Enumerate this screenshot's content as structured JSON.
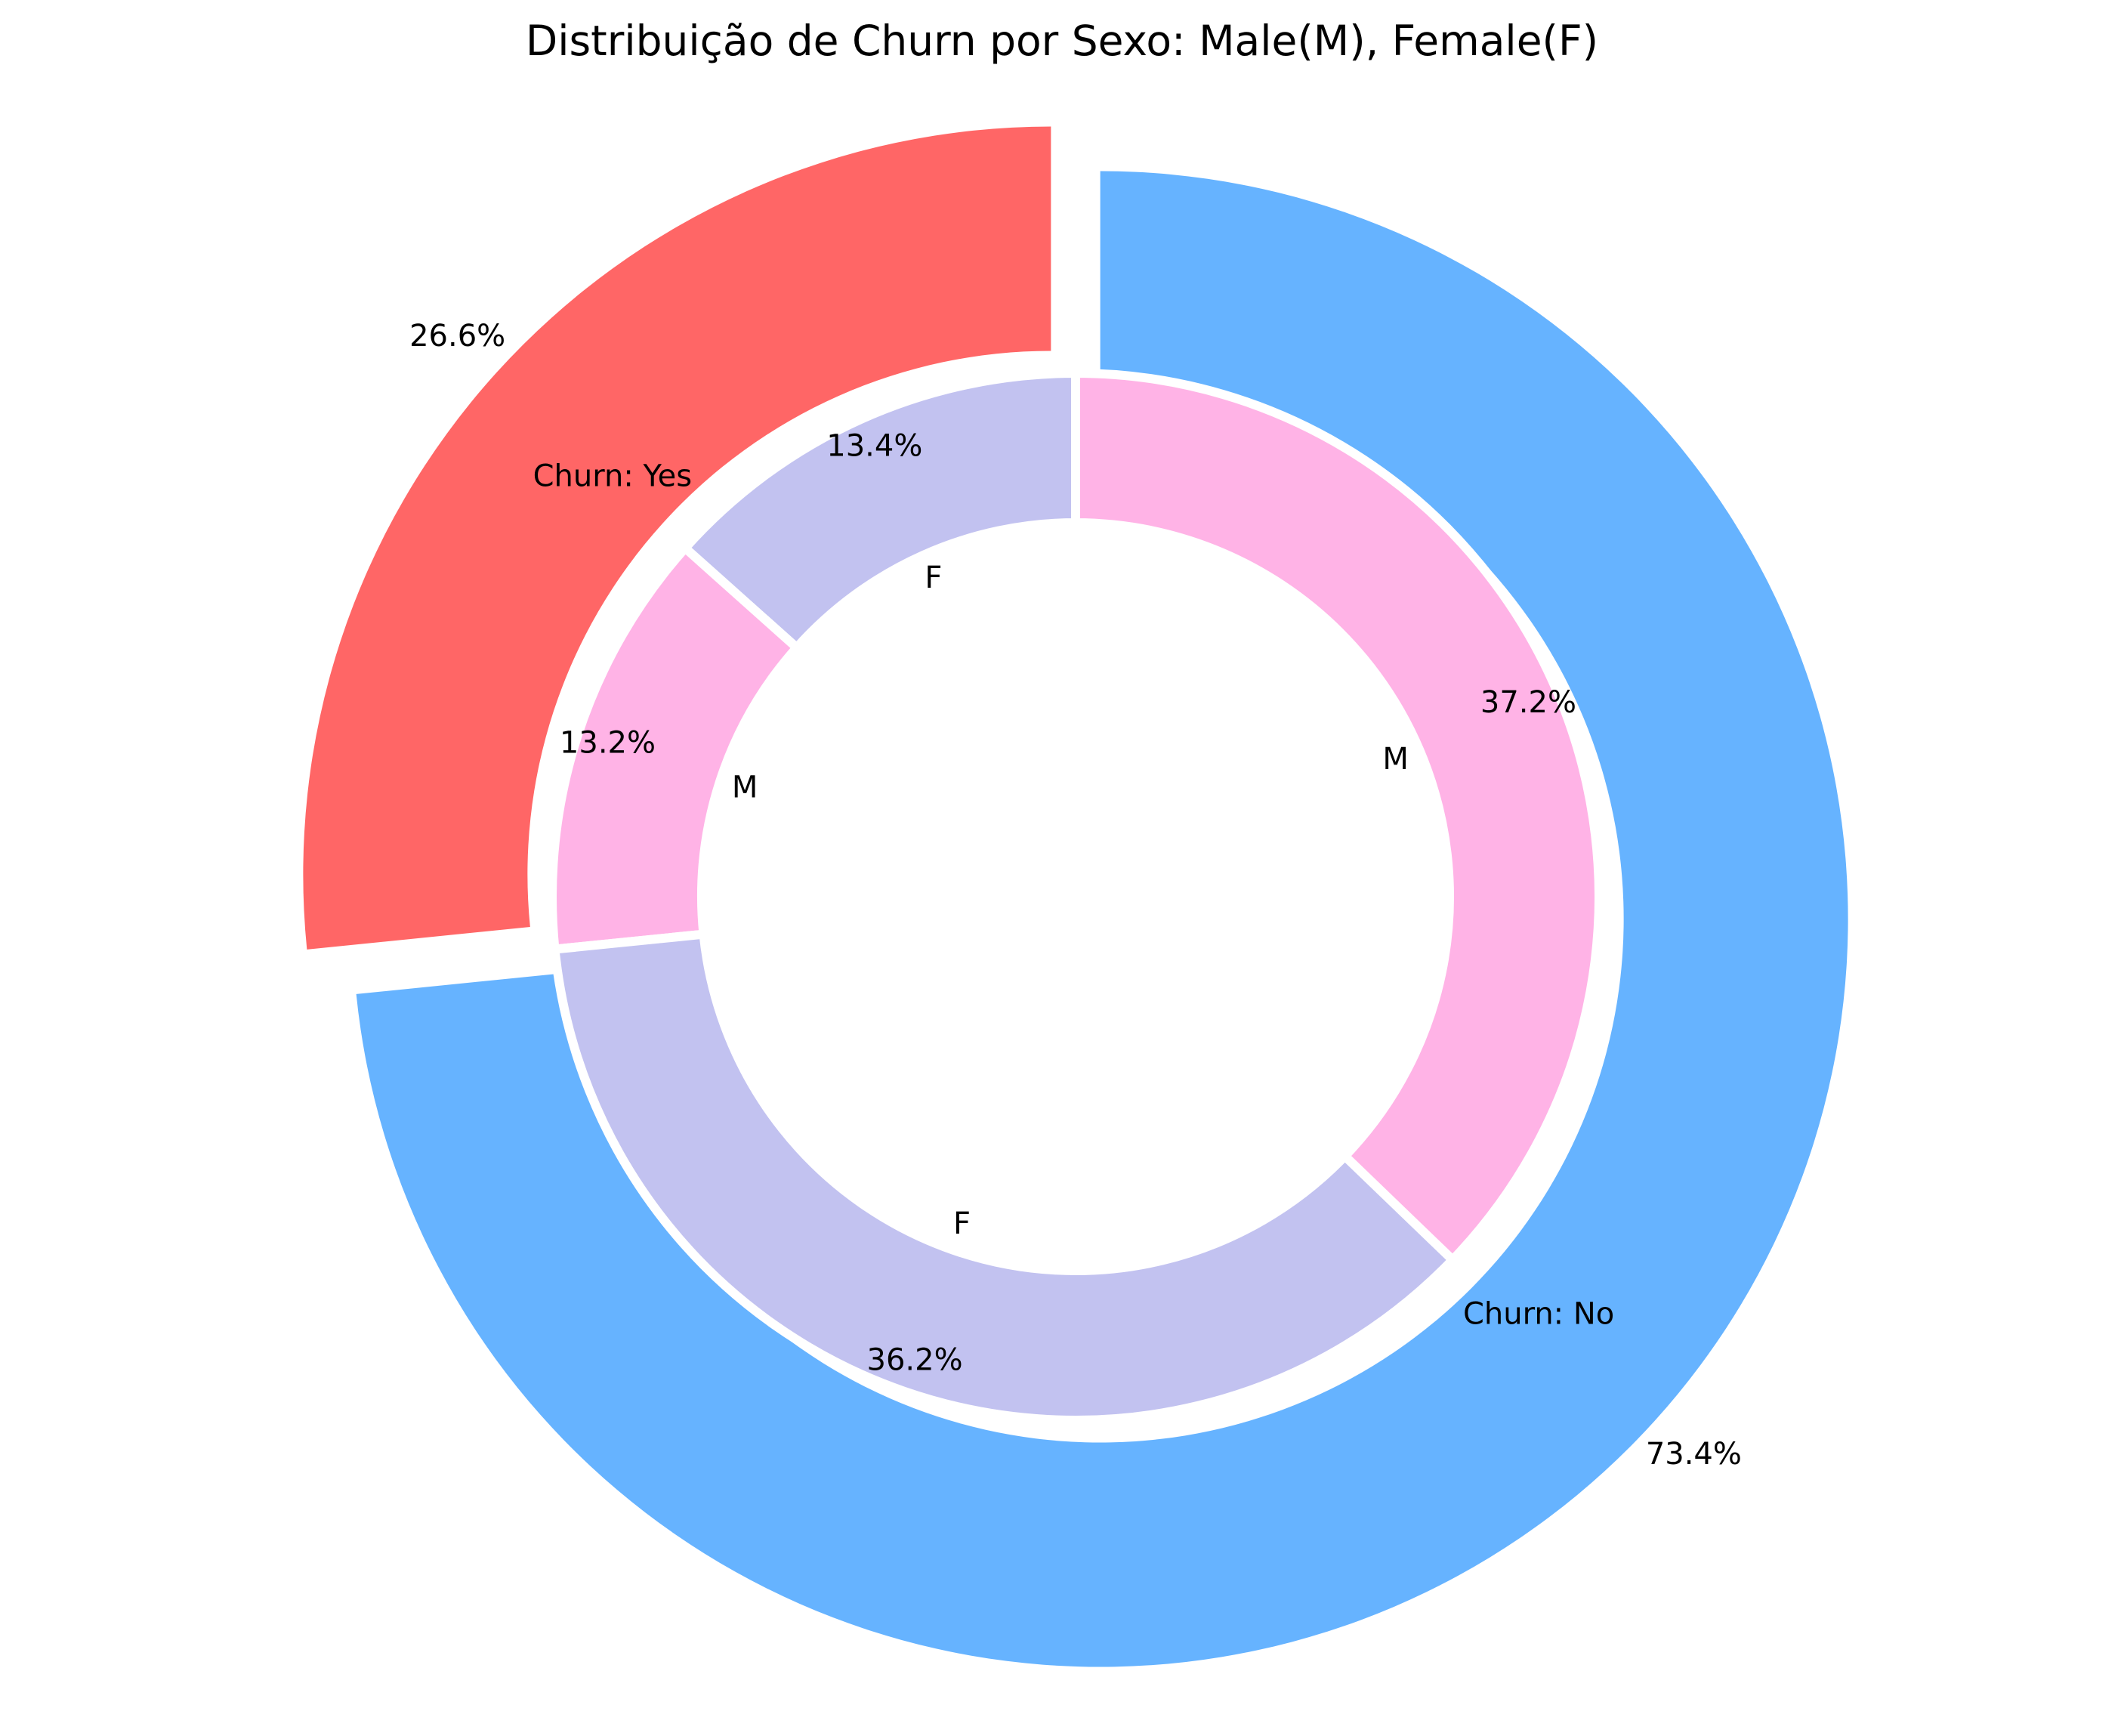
{
  "chart_data": {
    "type": "pie",
    "title": "Distribuição de Churn por Sexo: Male(M), Female(F)",
    "outer": {
      "categories": [
        "Churn: Yes",
        "Churn: No"
      ],
      "values": [
        26.6,
        73.4
      ],
      "labels": [
        "26.6%",
        "73.4%"
      ],
      "colors": [
        "#ff6666",
        "#66b3ff"
      ]
    },
    "inner": {
      "categories": [
        "F",
        "M",
        "F",
        "M"
      ],
      "values": [
        13.4,
        13.2,
        36.2,
        37.2
      ],
      "labels": [
        "13.4%",
        "13.2%",
        "36.2%",
        "37.2%"
      ],
      "colors": [
        "#c2c2f0",
        "#ffb3e6",
        "#c2c2f0",
        "#ffb3e6"
      ]
    }
  }
}
